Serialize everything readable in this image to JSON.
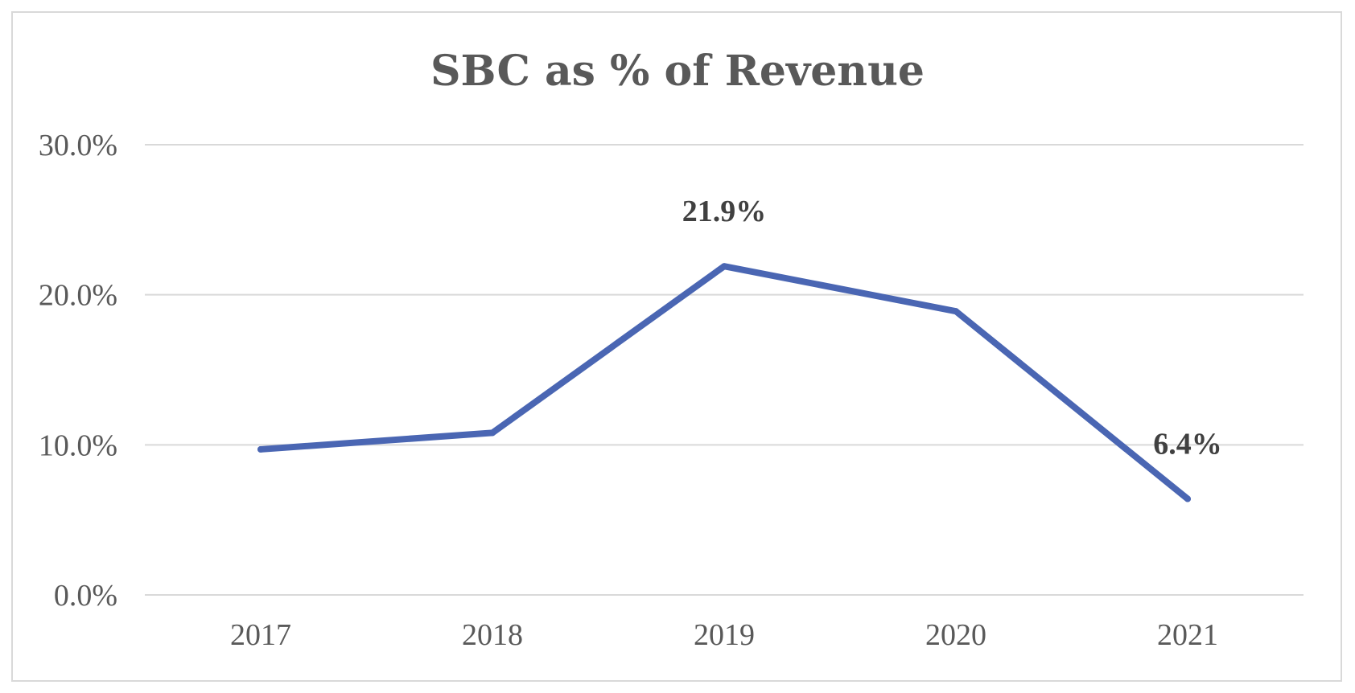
{
  "chart_data": {
    "type": "line",
    "title": "SBC as % of Revenue",
    "xlabel": "",
    "ylabel": "",
    "categories": [
      "2017",
      "2018",
      "2019",
      "2020",
      "2021"
    ],
    "series": [
      {
        "name": "SBC as % of Revenue",
        "values": [
          9.7,
          10.8,
          21.9,
          18.9,
          6.4
        ],
        "color": "#4a66b3"
      }
    ],
    "ylim": [
      0,
      30
    ],
    "yticks": [
      0,
      10,
      20,
      30
    ],
    "ytick_labels": [
      "0.0%",
      "10.0%",
      "20.0%",
      "30.0%"
    ],
    "data_labels": [
      {
        "category": "2019",
        "text": "21.9%"
      },
      {
        "category": "2021",
        "text": "6.4%"
      }
    ],
    "grid": true,
    "legend": "none"
  },
  "colors": {
    "grid": "#d9d9d9",
    "text": "#595959",
    "label": "#404040"
  }
}
